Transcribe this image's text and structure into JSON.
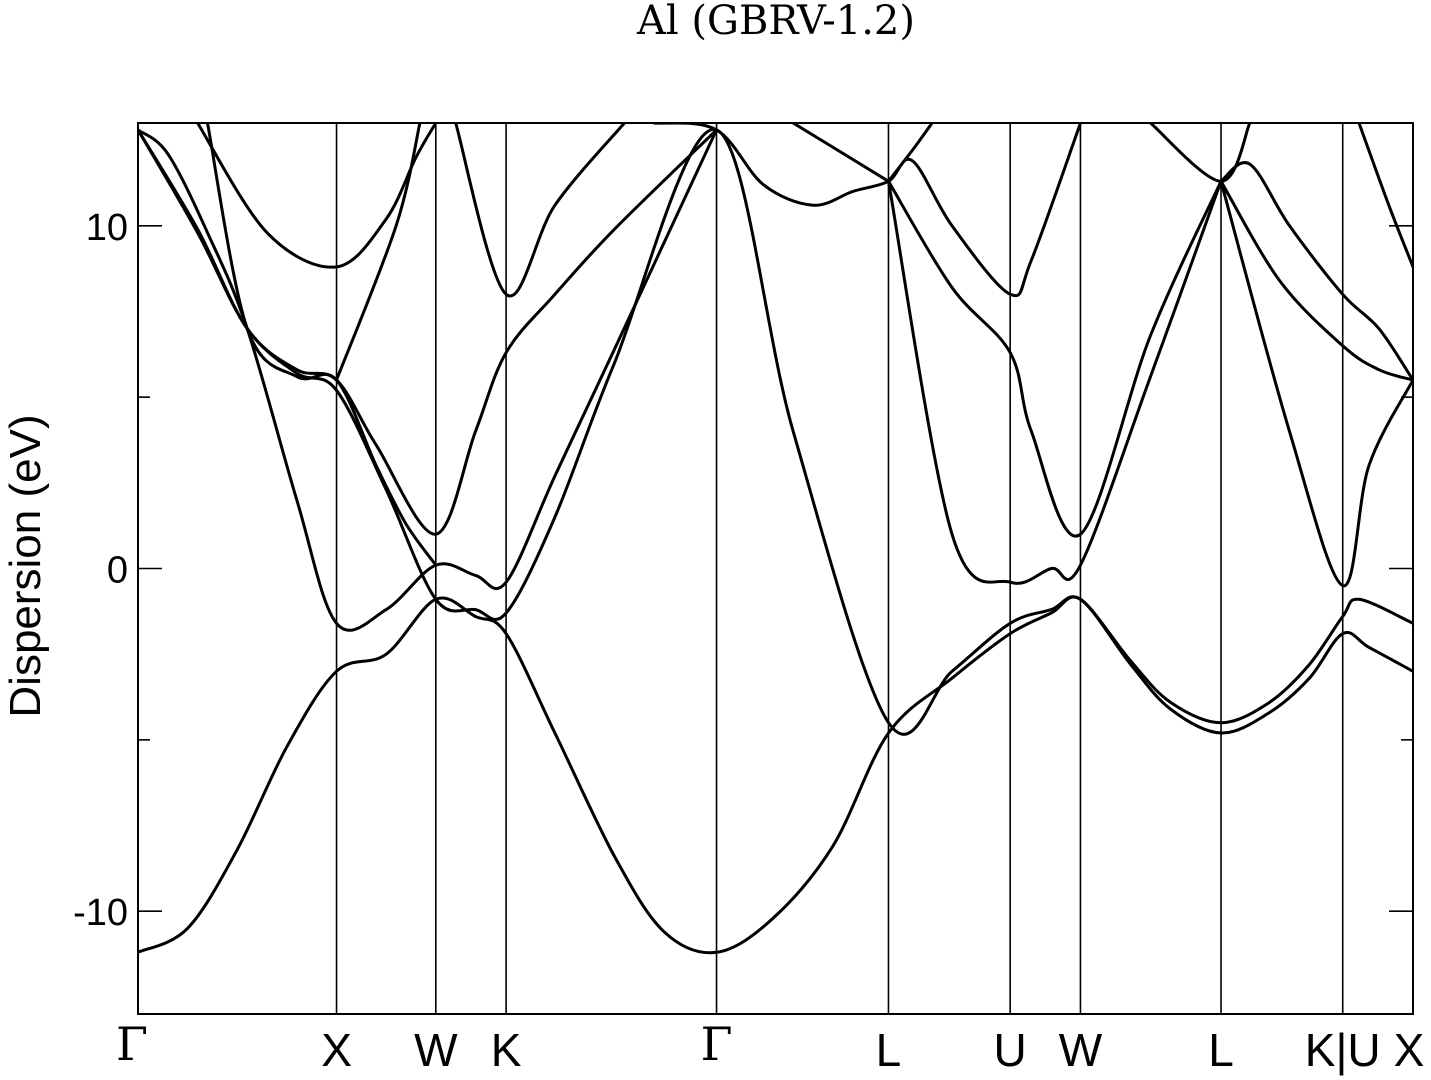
{
  "chart_data": {
    "type": "line",
    "title": "Al (GBRV-1.2)",
    "xlabel": "",
    "ylabel": "Dispersion (eV)",
    "ylim": [
      -13,
      13
    ],
    "yticks": [
      -10,
      0,
      10
    ],
    "yticklabels": [
      "-10",
      "0",
      "10"
    ],
    "grid": false,
    "kpath": [
      {
        "label": "Γ",
        "x": 0.0
      },
      {
        "label": "X",
        "x": 1.0
      },
      {
        "label": "W",
        "x": 1.5
      },
      {
        "label": "K",
        "x": 1.854
      },
      {
        "label": "Γ",
        "x": 2.914
      },
      {
        "label": "L",
        "x": 3.78
      },
      {
        "label": "U",
        "x": 4.393
      },
      {
        "label": "W",
        "x": 4.747
      },
      {
        "label": "L",
        "x": 5.455
      },
      {
        "label": "K|U",
        "x": 6.068
      },
      {
        "label": "X",
        "x": 6.422
      }
    ],
    "series": [
      {
        "values": [
          [
            0.0,
            -11.2
          ],
          [
            0.25,
            -10.5
          ],
          [
            0.5,
            -8.2
          ],
          [
            0.75,
            -5.2
          ],
          [
            1.0,
            -3.0
          ],
          [
            1.25,
            -2.5
          ],
          [
            1.5,
            -0.9
          ],
          [
            1.7,
            -1.4
          ],
          [
            1.854,
            -1.9
          ],
          [
            2.1,
            -4.8
          ],
          [
            2.4,
            -8.4
          ],
          [
            2.65,
            -10.6
          ],
          [
            2.914,
            -11.2
          ],
          [
            3.2,
            -10.2
          ],
          [
            3.5,
            -8.1
          ],
          [
            3.78,
            -4.8
          ],
          [
            4.1,
            -3.2
          ],
          [
            4.393,
            -1.9
          ],
          [
            4.6,
            -1.3
          ],
          [
            4.747,
            -0.9
          ],
          [
            5.0,
            -2.8
          ],
          [
            5.2,
            -4.1
          ],
          [
            5.455,
            -4.8
          ],
          [
            5.7,
            -4.2
          ],
          [
            5.9,
            -3.2
          ],
          [
            6.068,
            -1.9
          ],
          [
            6.2,
            -2.3
          ],
          [
            6.422,
            -3.0
          ]
        ]
      },
      {
        "values": [
          [
            0.0,
            12.8
          ],
          [
            0.3,
            9.8
          ],
          [
            0.55,
            7.0
          ],
          [
            0.8,
            5.7
          ],
          [
            1.0,
            5.2
          ],
          [
            1.25,
            2.3
          ],
          [
            1.5,
            -0.9
          ],
          [
            1.7,
            -1.2
          ],
          [
            1.854,
            -1.3
          ],
          [
            2.1,
            1.5
          ],
          [
            2.4,
            6.0
          ],
          [
            2.914,
            12.8
          ],
          [
            3.3,
            4.0
          ],
          [
            3.78,
            -4.5
          ],
          [
            4.1,
            -3.0
          ],
          [
            4.393,
            -1.6
          ],
          [
            4.6,
            -1.2
          ],
          [
            4.747,
            -0.9
          ],
          [
            5.0,
            -2.7
          ],
          [
            5.2,
            -3.9
          ],
          [
            5.455,
            -4.5
          ],
          [
            5.7,
            -3.9
          ],
          [
            5.9,
            -2.8
          ],
          [
            6.068,
            -1.4
          ],
          [
            6.15,
            -0.9
          ],
          [
            6.422,
            -1.6
          ]
        ]
      },
      {
        "values": [
          [
            0.0,
            12.8
          ],
          [
            0.3,
            9.9
          ],
          [
            0.55,
            7.0
          ],
          [
            0.8,
            5.8
          ],
          [
            1.0,
            5.5
          ],
          [
            1.2,
            3.6
          ],
          [
            1.5,
            1.0
          ],
          [
            1.7,
            4.0
          ],
          [
            1.854,
            6.3
          ],
          [
            2.1,
            8.0
          ],
          [
            2.4,
            9.9
          ],
          [
            2.914,
            12.8
          ]
        ]
      },
      {
        "values": [
          [
            0.0,
            12.8
          ],
          [
            0.15,
            12.1
          ],
          [
            0.35,
            9.8
          ],
          [
            0.55,
            7.0
          ],
          [
            0.8,
            2.0
          ],
          [
            1.0,
            -1.6
          ],
          [
            1.25,
            -1.2
          ],
          [
            1.5,
            0.1
          ],
          [
            1.7,
            -0.2
          ],
          [
            1.854,
            -0.4
          ],
          [
            2.1,
            2.7
          ],
          [
            2.4,
            6.4
          ],
          [
            2.914,
            12.8
          ]
        ]
      },
      {
        "values": [
          [
            0.35,
            13.0
          ],
          [
            0.55,
            7.0
          ],
          [
            0.8,
            5.6
          ],
          [
            1.0,
            5.5
          ],
          [
            1.2,
            3.0
          ],
          [
            1.35,
            1.3
          ],
          [
            1.5,
            0.1
          ]
        ]
      },
      {
        "values": [
          [
            0.3,
            13.0
          ],
          [
            0.65,
            9.8
          ],
          [
            1.0,
            8.8
          ],
          [
            1.25,
            10.2
          ],
          [
            1.4,
            12.0
          ],
          [
            1.5,
            13.0
          ]
        ]
      },
      {
        "values": [
          [
            1.0,
            5.5
          ],
          [
            1.3,
            10.0
          ],
          [
            1.42,
            13.0
          ]
        ]
      },
      {
        "values": [
          [
            1.6,
            13.0
          ],
          [
            1.854,
            8.0
          ],
          [
            2.1,
            10.6
          ],
          [
            2.45,
            13.0
          ]
        ]
      },
      {
        "values": [
          [
            2.6,
            13.0
          ],
          [
            2.914,
            12.8
          ],
          [
            3.15,
            11.2
          ],
          [
            3.4,
            10.6
          ],
          [
            3.6,
            11.0
          ],
          [
            3.78,
            11.3
          ],
          [
            3.9,
            11.9
          ],
          [
            4.1,
            10.0
          ],
          [
            4.393,
            8.0
          ],
          [
            4.5,
            9.0
          ],
          [
            4.747,
            13.0
          ]
        ]
      },
      {
        "values": [
          [
            3.78,
            11.3
          ],
          [
            4.1,
            8.2
          ],
          [
            4.393,
            6.3
          ],
          [
            4.5,
            4.0
          ],
          [
            4.747,
            1.0
          ],
          [
            5.1,
            6.8
          ],
          [
            5.455,
            11.3
          ]
        ]
      },
      {
        "values": [
          [
            3.78,
            11.3
          ],
          [
            4.1,
            1.0
          ],
          [
            4.393,
            -0.4
          ],
          [
            4.6,
            0.0
          ],
          [
            4.747,
            0.1
          ],
          [
            5.1,
            5.6
          ],
          [
            5.455,
            11.3
          ]
        ]
      },
      {
        "values": [
          [
            3.78,
            11.3
          ],
          [
            3.9,
            12.2
          ],
          [
            4.0,
            13.0
          ]
        ]
      },
      {
        "values": [
          [
            3.3,
            13.0
          ],
          [
            3.78,
            11.3
          ]
        ]
      },
      {
        "values": [
          [
            5.455,
            11.3
          ],
          [
            5.6,
            11.8
          ],
          [
            5.8,
            10.0
          ],
          [
            6.068,
            8.0
          ],
          [
            6.25,
            7.0
          ],
          [
            6.422,
            5.5
          ]
        ]
      },
      {
        "values": [
          [
            5.455,
            11.3
          ],
          [
            5.75,
            8.4
          ],
          [
            6.068,
            6.5
          ],
          [
            6.25,
            5.8
          ],
          [
            6.422,
            5.5
          ]
        ]
      },
      {
        "values": [
          [
            5.455,
            11.3
          ],
          [
            5.8,
            4.0
          ],
          [
            6.068,
            -0.5
          ],
          [
            6.2,
            3.0
          ],
          [
            6.422,
            5.5
          ]
        ]
      },
      {
        "values": [
          [
            5.1,
            13.0
          ],
          [
            5.455,
            11.3
          ],
          [
            5.6,
            13.0
          ]
        ]
      },
      {
        "values": [
          [
            6.15,
            13.0
          ],
          [
            6.3,
            10.6
          ],
          [
            6.422,
            8.8
          ]
        ]
      }
    ]
  }
}
